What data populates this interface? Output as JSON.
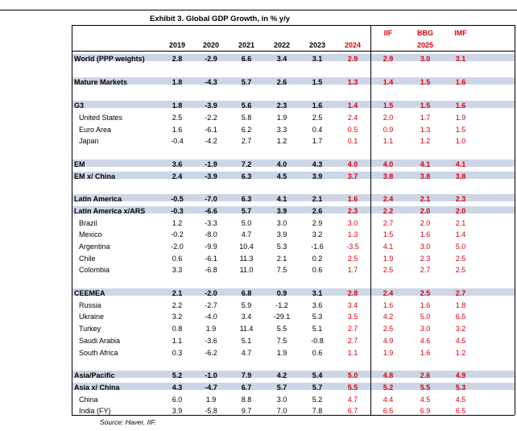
{
  "title": "Exhibit 3. Global GDP Growth, in % y/y",
  "source": "Source: Haver, IIF.",
  "colors": {
    "highlight": "#d9000d",
    "band": "#cdd6e6"
  },
  "chart_data": {
    "type": "table",
    "title": "Exhibit 3. Global GDP Growth, in % y/y",
    "column_groups": [
      "IIF",
      "BBG",
      "IMF"
    ],
    "columns": [
      "2019",
      "2020",
      "2021",
      "2022",
      "2023",
      "2024",
      "",
      "2025",
      ""
    ],
    "rows": [
      {
        "name": "World (PPP weights)",
        "values": [
          "2.8",
          "-2.9",
          "6.6",
          "3.4",
          "3.1",
          "2.9",
          "2.9",
          "3.0",
          "3.1"
        ]
      },
      {
        "name": "Mature Markets",
        "values": [
          "1.8",
          "-4.3",
          "5.7",
          "2.6",
          "1.5",
          "1.3",
          "1.4",
          "1.5",
          "1.6"
        ]
      },
      {
        "name": "G3",
        "values": [
          "1.8",
          "-3.9",
          "5.6",
          "2.3",
          "1.6",
          "1.4",
          "1.5",
          "1.5",
          "1.6"
        ]
      },
      {
        "name": "United States",
        "values": [
          "2.5",
          "-2.2",
          "5.8",
          "1.9",
          "2.5",
          "2.4",
          "2.0",
          "1.7",
          "1.9"
        ]
      },
      {
        "name": "Euro Area",
        "values": [
          "1.6",
          "-6.1",
          "6.2",
          "3.3",
          "0.4",
          "0.5",
          "0.9",
          "1.3",
          "1.5"
        ]
      },
      {
        "name": "Japan",
        "values": [
          "-0.4",
          "-4.2",
          "2.7",
          "1.2",
          "1.7",
          "0.1",
          "1.1",
          "1.2",
          "1.0"
        ]
      },
      {
        "name": "EM",
        "values": [
          "3.6",
          "-1.9",
          "7.2",
          "4.0",
          "4.3",
          "4.0",
          "4.0",
          "4.1",
          "4.1"
        ]
      },
      {
        "name": "EM x/ China",
        "values": [
          "2.4",
          "-3.9",
          "6.3",
          "4.5",
          "3.9",
          "3.7",
          "3.8",
          "3.8",
          "3.8"
        ]
      },
      {
        "name": "Latin America",
        "values": [
          "-0.5",
          "-7.0",
          "6.3",
          "4.1",
          "2.1",
          "1.6",
          "2.4",
          "2.1",
          "2.3"
        ]
      },
      {
        "name": "Latin America x/ARS",
        "values": [
          "-0.3",
          "-6.6",
          "5.7",
          "3.9",
          "2.6",
          "2.3",
          "2.2",
          "2.0",
          "2.0"
        ]
      },
      {
        "name": "Brazil",
        "values": [
          "1.2",
          "-3.3",
          "5.0",
          "3.0",
          "2.9",
          "3.0",
          "2.7",
          "2.0",
          "2.1"
        ]
      },
      {
        "name": "Mexico",
        "values": [
          "-0.2",
          "-8.0",
          "4.7",
          "3.9",
          "3.2",
          "1.3",
          "1.5",
          "1.6",
          "1.4"
        ]
      },
      {
        "name": "Argentina",
        "values": [
          "-2.0",
          "-9.9",
          "10.4",
          "5.3",
          "-1.6",
          "-3.5",
          "4.1",
          "3.0",
          "5.0"
        ]
      },
      {
        "name": "Chile",
        "values": [
          "0.6",
          "-6.1",
          "11.3",
          "2.1",
          "0.2",
          "2.5",
          "1.9",
          "2.3",
          "2.5"
        ]
      },
      {
        "name": "Colombia",
        "values": [
          "3.3",
          "-6.8",
          "11.0",
          "7.5",
          "0.6",
          "1.7",
          "2.5",
          "2.7",
          "2.5"
        ]
      },
      {
        "name": "CEEMEA",
        "values": [
          "2.1",
          "-2.0",
          "6.8",
          "0.9",
          "3.1",
          "2.8",
          "2.4",
          "2.5",
          "2.7"
        ]
      },
      {
        "name": "Russia",
        "values": [
          "2.2",
          "-2.7",
          "5.9",
          "-1.2",
          "3.6",
          "3.4",
          "1.6",
          "1.6",
          "1.8"
        ]
      },
      {
        "name": "Ukraine",
        "values": [
          "3.2",
          "-4.0",
          "3.4",
          "-29.1",
          "5.3",
          "3.5",
          "4.2",
          "5.0",
          "6.5"
        ]
      },
      {
        "name": "Turkey",
        "values": [
          "0.8",
          "1.9",
          "11.4",
          "5.5",
          "5.1",
          "2.7",
          "2.5",
          "3.0",
          "3.2"
        ]
      },
      {
        "name": "Saudi Arabia",
        "values": [
          "1.1",
          "-3.6",
          "5.1",
          "7.5",
          "-0.8",
          "2.7",
          "4.9",
          "4.6",
          "4.5"
        ]
      },
      {
        "name": "South Africa",
        "values": [
          "0.3",
          "-6.2",
          "4.7",
          "1.9",
          "0.6",
          "1.1",
          "1.9",
          "1.6",
          "1.2"
        ]
      },
      {
        "name": "Asia/Pacific",
        "values": [
          "5.2",
          "-1.0",
          "7.9",
          "4.2",
          "5.4",
          "5.0",
          "4.8",
          "2.6",
          "4.9"
        ]
      },
      {
        "name": "Asia x/ China",
        "values": [
          "4.3",
          "-4.7",
          "6.7",
          "5.7",
          "5.7",
          "5.5",
          "5.2",
          "5.5",
          "5.3"
        ]
      },
      {
        "name": "China",
        "values": [
          "6.0",
          "1.9",
          "8.8",
          "3.0",
          "5.2",
          "4.7",
          "4.4",
          "4.5",
          "4.5"
        ]
      },
      {
        "name": "India (FY)",
        "values": [
          "3.9",
          "-5.8",
          "9.7",
          "7.0",
          "7.8",
          "6.7",
          "6.5",
          "6.9",
          "6.5"
        ]
      }
    ]
  }
}
